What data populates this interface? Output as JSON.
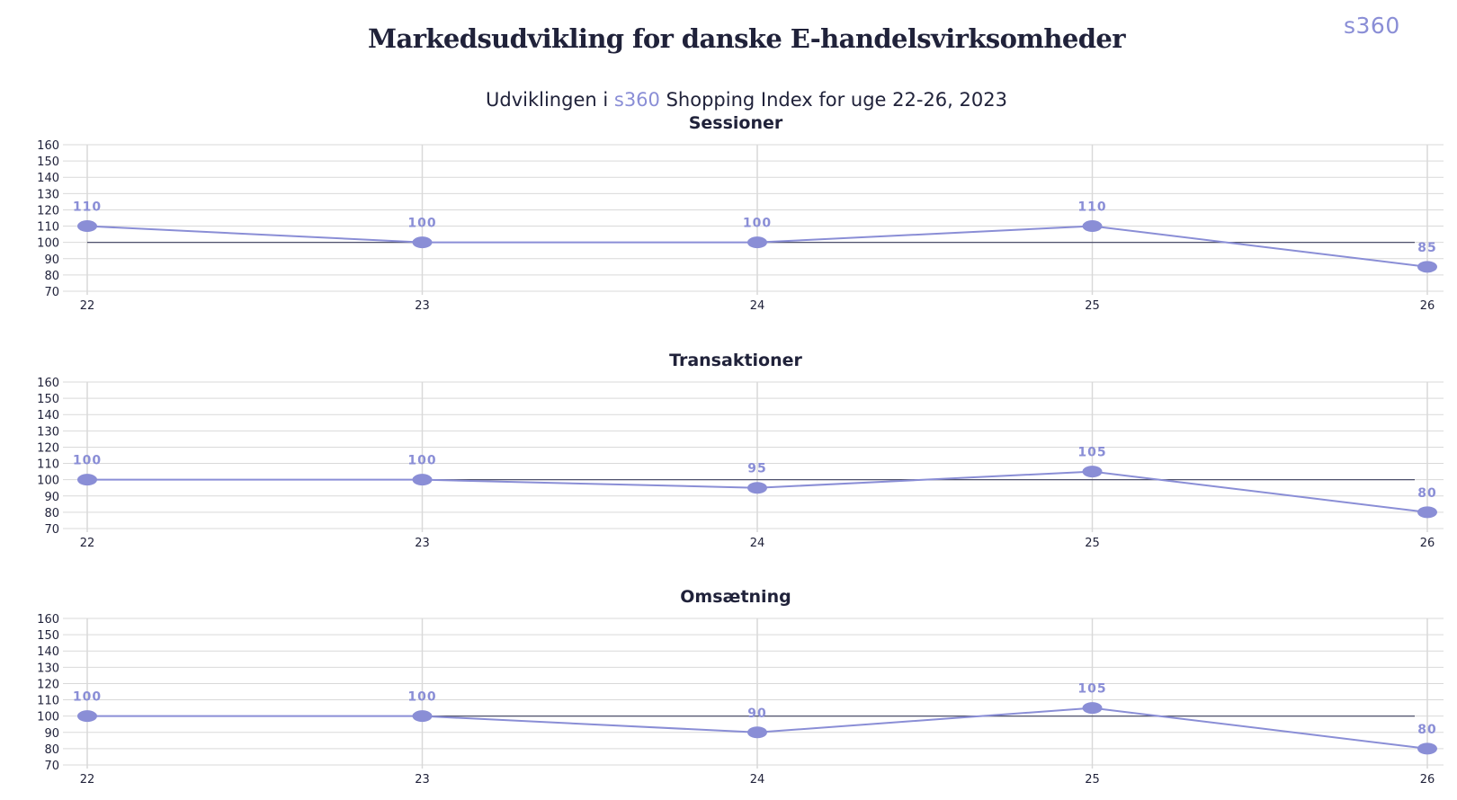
{
  "header": {
    "title": "Markedsudvikling for danske E-handelsvirksomheder",
    "logo_text": "s360",
    "subtitle_before": "Udviklingen i ",
    "subtitle_brand": "s360",
    "subtitle_after": " Shopping Index for uge 22-26, 2023"
  },
  "colors": {
    "series": "#8a8ed6",
    "baseline": "#3a3d5c",
    "grid": "#d9d9d9",
    "text": "#20223a"
  },
  "chart_data": [
    {
      "type": "line",
      "title": "Sessioner",
      "x": [
        "22",
        "23",
        "24",
        "25",
        "26"
      ],
      "series": [
        {
          "values": [
            110,
            100,
            100,
            110,
            85
          ]
        }
      ],
      "data_labels": [
        "110",
        "100",
        "100",
        "110",
        "85"
      ],
      "yticks": [
        70,
        80,
        90,
        100,
        110,
        120,
        130,
        140,
        150,
        160
      ],
      "ylim": [
        70,
        160
      ],
      "baseline": 100,
      "grid": true
    },
    {
      "type": "line",
      "title": "Transaktioner",
      "x": [
        "22",
        "23",
        "24",
        "25",
        "26"
      ],
      "series": [
        {
          "values": [
            100,
            100,
            95,
            105,
            80
          ]
        }
      ],
      "data_labels": [
        "100",
        "100",
        "95",
        "105",
        "80"
      ],
      "yticks": [
        70,
        80,
        90,
        100,
        110,
        120,
        130,
        140,
        150,
        160
      ],
      "ylim": [
        70,
        160
      ],
      "baseline": 100,
      "grid": true
    },
    {
      "type": "line",
      "title": "Omsætning",
      "x": [
        "22",
        "23",
        "24",
        "25",
        "26"
      ],
      "series": [
        {
          "values": [
            100,
            100,
            90,
            105,
            80
          ]
        }
      ],
      "data_labels": [
        "100",
        "100",
        "90",
        "105",
        "80"
      ],
      "yticks": [
        70,
        80,
        90,
        100,
        110,
        120,
        130,
        140,
        150,
        160
      ],
      "ylim": [
        70,
        160
      ],
      "baseline": 100,
      "grid": true
    }
  ]
}
